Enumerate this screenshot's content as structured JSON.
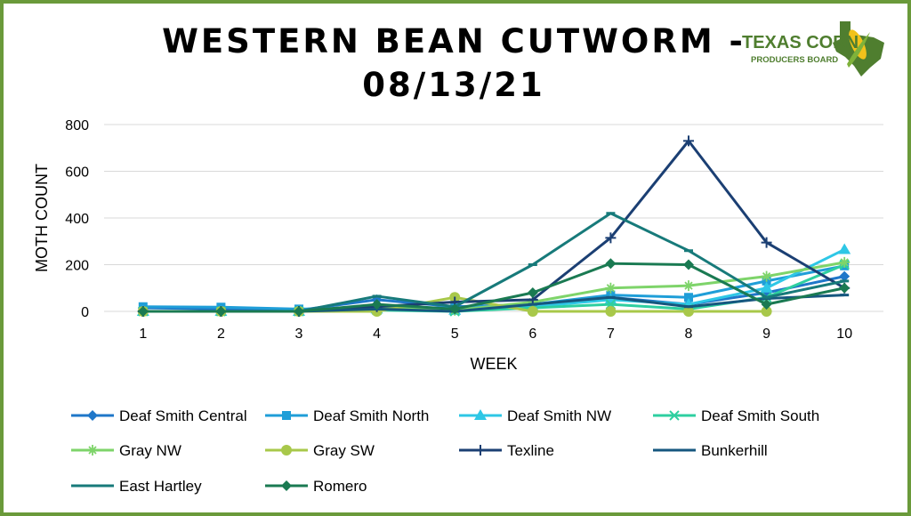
{
  "title": "WESTERN BEAN CUTWORM - 08/13/21",
  "logo": {
    "line1": "TEXAS CORN",
    "line2": "PRODUCERS BOARD"
  },
  "colors": {
    "border": "#6a9a3a",
    "grid": "#d9d9d9"
  },
  "chart_data": {
    "type": "line",
    "title": "WESTERN BEAN CUTWORM - 08/13/21",
    "xlabel": "WEEK",
    "ylabel": "MOTH COUNT",
    "x": [
      1,
      2,
      3,
      4,
      5,
      6,
      7,
      8,
      9,
      10
    ],
    "ylim": [
      0,
      800
    ],
    "yticks": [
      0,
      200,
      400,
      600,
      800
    ],
    "grid": true,
    "legend_position": "bottom",
    "series": [
      {
        "name": "Deaf Smith Central",
        "color": "#1f77c9",
        "marker": "diamond",
        "values": [
          15,
          10,
          5,
          50,
          20,
          30,
          60,
          30,
          80,
          150
        ]
      },
      {
        "name": "Deaf Smith North",
        "color": "#1f9ed8",
        "marker": "square",
        "values": [
          20,
          18,
          10,
          15,
          15,
          30,
          70,
          60,
          130,
          195
        ]
      },
      {
        "name": "Deaf Smith NW",
        "color": "#2ec7e6",
        "marker": "triangle",
        "values": [
          0,
          0,
          0,
          10,
          5,
          20,
          50,
          30,
          100,
          265
        ]
      },
      {
        "name": "Deaf Smith South",
        "color": "#2ecfa0",
        "marker": "x",
        "values": [
          0,
          0,
          0,
          5,
          0,
          15,
          30,
          10,
          60,
          200
        ]
      },
      {
        "name": "Gray NW",
        "color": "#7ed46a",
        "marker": "asterisk",
        "values": [
          0,
          0,
          0,
          20,
          5,
          40,
          100,
          110,
          150,
          210
        ]
      },
      {
        "name": "Gray SW",
        "color": "#a8c84a",
        "marker": "circle",
        "values": [
          0,
          0,
          0,
          0,
          60,
          0,
          0,
          0,
          0,
          null
        ]
      },
      {
        "name": "Texline",
        "color": "#1b3f73",
        "marker": "plus",
        "values": [
          0,
          0,
          0,
          20,
          40,
          50,
          315,
          730,
          295,
          100
        ]
      },
      {
        "name": "Bunkerhill",
        "color": "#16577f",
        "marker": "dash",
        "values": [
          0,
          0,
          0,
          10,
          0,
          30,
          60,
          20,
          55,
          70
        ]
      },
      {
        "name": "East Hartley",
        "color": "#177a7a",
        "marker": "dash",
        "values": [
          0,
          0,
          0,
          65,
          20,
          200,
          420,
          260,
          60,
          130
        ]
      },
      {
        "name": "Romero",
        "color": "#1a7a52",
        "marker": "diamond",
        "values": [
          0,
          0,
          0,
          30,
          10,
          80,
          205,
          200,
          30,
          100
        ]
      }
    ]
  }
}
